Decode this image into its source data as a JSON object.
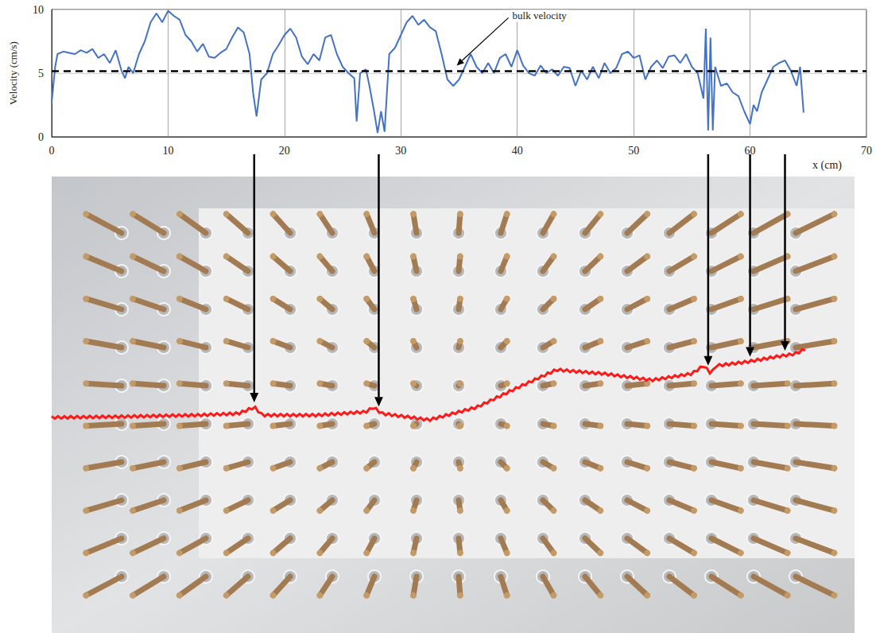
{
  "chart_data": {
    "type": "line",
    "xlabel": "x (cm)",
    "ylabel": "Velocity (cm/s)",
    "x": [
      0,
      0.3,
      0.5,
      1,
      1.5,
      2,
      2.5,
      3,
      3.5,
      4,
      4.5,
      5,
      5.5,
      6,
      6.3,
      6.6,
      7,
      7.5,
      8,
      8.5,
      9,
      9.5,
      10,
      10.5,
      11,
      11.5,
      12,
      12.5,
      13,
      13.5,
      14,
      14.5,
      15,
      15.5,
      16,
      16.5,
      17,
      17.3,
      17.6,
      18,
      18.5,
      19,
      19.5,
      20,
      20.5,
      21,
      21.5,
      22,
      22.5,
      23,
      23.5,
      24,
      24.5,
      25,
      25.5,
      26,
      26.2,
      26.5,
      27,
      27.3,
      27.7,
      28,
      28.3,
      28.6,
      29,
      29.5,
      30,
      30.5,
      31,
      31.5,
      32,
      32.5,
      33,
      33.5,
      34,
      34.5,
      35,
      35.5,
      36,
      36.5,
      37,
      37.5,
      38,
      38.5,
      39,
      39.5,
      40,
      40.5,
      41,
      41.5,
      42,
      42.5,
      43,
      43.5,
      44,
      44.5,
      45,
      45.5,
      46,
      46.5,
      47,
      47.5,
      48,
      48.5,
      49,
      49.5,
      50,
      50.5,
      51,
      51.5,
      52,
      52.5,
      53,
      53.5,
      54,
      54.5,
      55,
      55.5,
      56,
      56.2,
      56.4,
      56.6,
      56.8,
      57,
      57.5,
      58,
      58.5,
      59,
      59.5,
      60,
      60.3,
      60.6,
      61,
      61.5,
      62,
      62.5,
      63,
      63.5,
      64,
      64.3,
      64.6
    ],
    "values": [
      2.7,
      5.5,
      6.5,
      6.7,
      6.6,
      6.5,
      6.8,
      6.6,
      6.9,
      6.2,
      6.5,
      5.8,
      6.8,
      5.2,
      4.6,
      5.5,
      5.0,
      6.5,
      7.5,
      9.0,
      9.7,
      9.0,
      9.9,
      9.5,
      9.2,
      8.0,
      7.5,
      6.7,
      7.3,
      6.3,
      6.2,
      6.6,
      6.9,
      7.8,
      8.6,
      8.2,
      6.5,
      3.5,
      1.6,
      4.5,
      5.0,
      6.5,
      7.2,
      8.0,
      8.5,
      7.8,
      6.3,
      5.7,
      6.5,
      6.0,
      7.8,
      8.0,
      6.5,
      5.5,
      5.0,
      4.6,
      1.2,
      5.0,
      5.3,
      4.0,
      2.0,
      0.3,
      2.0,
      0.4,
      6.5,
      7.0,
      8.0,
      9.0,
      9.5,
      8.8,
      9.2,
      8.6,
      8.3,
      6.5,
      4.5,
      4.0,
      4.5,
      5.5,
      6.5,
      5.5,
      5.0,
      5.8,
      5.0,
      6.2,
      6.5,
      5.5,
      6.8,
      5.6,
      5.0,
      4.8,
      5.6,
      5.0,
      5.3,
      4.8,
      5.5,
      5.4,
      4.0,
      5.2,
      4.5,
      5.5,
      4.6,
      5.8,
      5.0,
      5.4,
      6.5,
      6.7,
      6.2,
      6.4,
      4.5,
      5.5,
      6.0,
      5.4,
      6.3,
      6.4,
      5.8,
      6.5,
      5.5,
      5.0,
      3.0,
      8.5,
      0.5,
      7.8,
      0.5,
      5.5,
      4.0,
      4.2,
      3.5,
      3.2,
      2.0,
      1.0,
      2.5,
      2.0,
      3.5,
      4.5,
      5.5,
      5.8,
      6.0,
      5.2,
      4.0,
      5.5,
      1.9
    ],
    "color": "#4472c4",
    "bulk_velocity": 5.2,
    "annotations": [
      {
        "text": "bulk velocity",
        "x": 34.8,
        "y": 5.6
      }
    ],
    "arrow_x": [
      17.4,
      28.1,
      56.4,
      60.0,
      63.0
    ],
    "xlim": [
      0,
      70
    ],
    "xticks": [
      0,
      10,
      20,
      30,
      40,
      50,
      60,
      70
    ],
    "ylim": [
      0,
      10
    ],
    "yticks": [
      0,
      5,
      10
    ],
    "grid": true
  }
}
